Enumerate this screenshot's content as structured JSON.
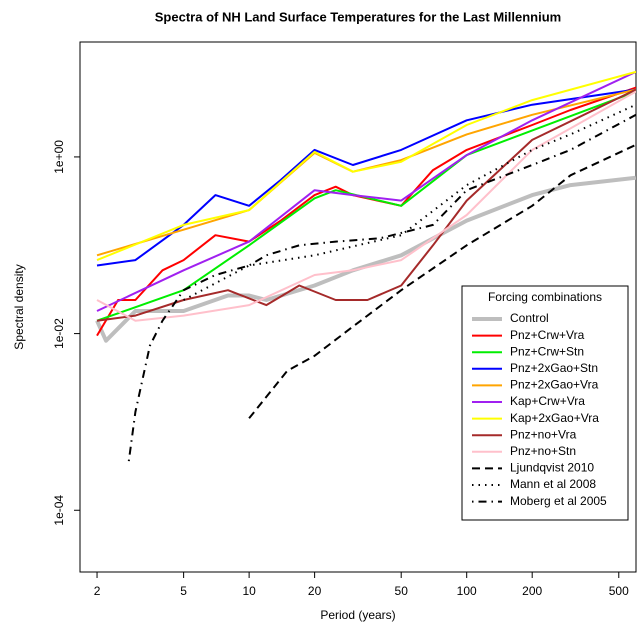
{
  "chart_data": {
    "type": "line",
    "title": "Spectra of NH Land Surface Temperatures for the Last Millennium",
    "x_label": "Period (years)",
    "y_label": "Spectral density",
    "log_x": true,
    "log_y": true,
    "xlim": [
      1.67,
      600
    ],
    "ylim": [
      2e-05,
      20
    ],
    "xticks": [
      2,
      5,
      10,
      20,
      50,
      100,
      200,
      500
    ],
    "yticks": [
      {
        "value": 1,
        "label": "1e+00"
      },
      {
        "value": 0.01,
        "label": "1e-02"
      },
      {
        "value": 0.0001,
        "label": "1e-04"
      }
    ],
    "legend_title": "Forcing combinations",
    "legend_position": "right",
    "series": [
      {
        "name": "Control",
        "color": "#bebebe",
        "width": 4,
        "dash": "solid",
        "x": [
          2,
          2.2,
          3,
          5,
          8,
          10,
          12,
          20,
          30,
          50,
          100,
          200,
          300,
          600
        ],
        "values": [
          0.014,
          0.0083,
          0.018,
          0.018,
          0.027,
          0.027,
          0.024,
          0.035,
          0.052,
          0.077,
          0.19,
          0.37,
          0.48,
          0.58
        ]
      },
      {
        "name": "Pnz+Crw+Vra",
        "color": "#ff0000",
        "width": 2,
        "dash": "solid",
        "x": [
          2,
          2.5,
          3,
          4,
          5,
          7,
          10,
          14,
          20,
          25,
          30,
          50,
          70,
          100,
          200,
          300,
          600
        ],
        "values": [
          0.0095,
          0.024,
          0.024,
          0.052,
          0.068,
          0.13,
          0.11,
          0.19,
          0.37,
          0.46,
          0.37,
          0.28,
          0.71,
          1.2,
          2.3,
          3.4,
          6.1
        ]
      },
      {
        "name": "Pnz+Crw+Stn",
        "color": "#00ee00",
        "width": 2,
        "dash": "solid",
        "x": [
          2,
          5,
          10,
          20,
          25,
          50,
          100,
          600
        ],
        "values": [
          0.014,
          0.031,
          0.1,
          0.34,
          0.42,
          0.28,
          1.05,
          5.5
        ]
      },
      {
        "name": "Pnz+2xGao+Stn",
        "color": "#0000ff",
        "width": 2,
        "dash": "solid",
        "x": [
          2,
          3,
          5,
          7,
          10,
          14,
          20,
          30,
          50,
          100,
          200,
          600
        ],
        "values": [
          0.059,
          0.068,
          0.17,
          0.37,
          0.28,
          0.55,
          1.2,
          0.81,
          1.2,
          2.6,
          3.9,
          5.8
        ]
      },
      {
        "name": "Pnz+2xGao+Vra",
        "color": "#ffa500",
        "width": 2,
        "dash": "solid",
        "x": [
          2,
          5,
          10,
          20,
          30,
          50,
          100,
          200,
          600
        ],
        "values": [
          0.077,
          0.15,
          0.25,
          1.11,
          0.68,
          0.92,
          1.8,
          3,
          5.8
        ]
      },
      {
        "name": "Kap+Crw+Vra",
        "color": "#a020f0",
        "width": 2,
        "dash": "solid",
        "x": [
          2,
          5,
          10,
          20,
          30,
          50,
          100,
          200,
          600
        ],
        "values": [
          0.018,
          0.052,
          0.11,
          0.42,
          0.37,
          0.32,
          1.05,
          2.6,
          9.2
        ]
      },
      {
        "name": "Kap+2xGao+Vra",
        "color": "#ffff00",
        "width": 2,
        "dash": "solid",
        "x": [
          2,
          5,
          10,
          20,
          30,
          50,
          100,
          200,
          600
        ],
        "values": [
          0.068,
          0.17,
          0.25,
          1.14,
          0.68,
          0.88,
          2.3,
          4.4,
          9.2
        ]
      },
      {
        "name": "Pnz+no+Vra",
        "color": "#a52a2a",
        "width": 2,
        "dash": "solid",
        "x": [
          2,
          3,
          5,
          8,
          12,
          17,
          25,
          35,
          50,
          70,
          100,
          200,
          600
        ],
        "values": [
          0.014,
          0.016,
          0.024,
          0.031,
          0.021,
          0.035,
          0.024,
          0.024,
          0.035,
          0.1,
          0.32,
          1.56,
          5.8
        ]
      },
      {
        "name": "Pnz+no+Stn",
        "color": "#ffc0cb",
        "width": 2,
        "dash": "solid",
        "x": [
          2,
          3,
          5,
          10,
          20,
          30,
          50,
          100,
          200,
          600
        ],
        "values": [
          0.024,
          0.014,
          0.016,
          0.021,
          0.046,
          0.052,
          0.068,
          0.22,
          1.2,
          5.5
        ]
      },
      {
        "name": "Ljundqvist 2010",
        "color": "#000000",
        "width": 2,
        "dash": "dashed",
        "x": [
          10,
          15,
          20,
          30,
          50,
          100,
          200,
          300,
          600
        ],
        "values": [
          0.0011,
          0.0038,
          0.0056,
          0.012,
          0.031,
          0.1,
          0.28,
          0.62,
          1.37
        ]
      },
      {
        "name": "Mann et al 2008",
        "color": "#000000",
        "width": 2,
        "dash": "dotted",
        "x": [
          5,
          10,
          20,
          50,
          100,
          200,
          300,
          600
        ],
        "values": [
          0.024,
          0.059,
          0.077,
          0.13,
          0.48,
          1.2,
          1.8,
          3.9
        ]
      },
      {
        "name": "Moberg et al 2005",
        "color": "#000000",
        "width": 2,
        "dash": "dashdot",
        "x": [
          2.8,
          3,
          3.5,
          4,
          5,
          7,
          10,
          12,
          17,
          25,
          40,
          70,
          100,
          200,
          300,
          600
        ],
        "values": [
          0.00036,
          0.0013,
          0.0073,
          0.014,
          0.031,
          0.046,
          0.059,
          0.077,
          0.1,
          0.11,
          0.12,
          0.17,
          0.42,
          0.81,
          1.2,
          3
        ]
      }
    ]
  }
}
